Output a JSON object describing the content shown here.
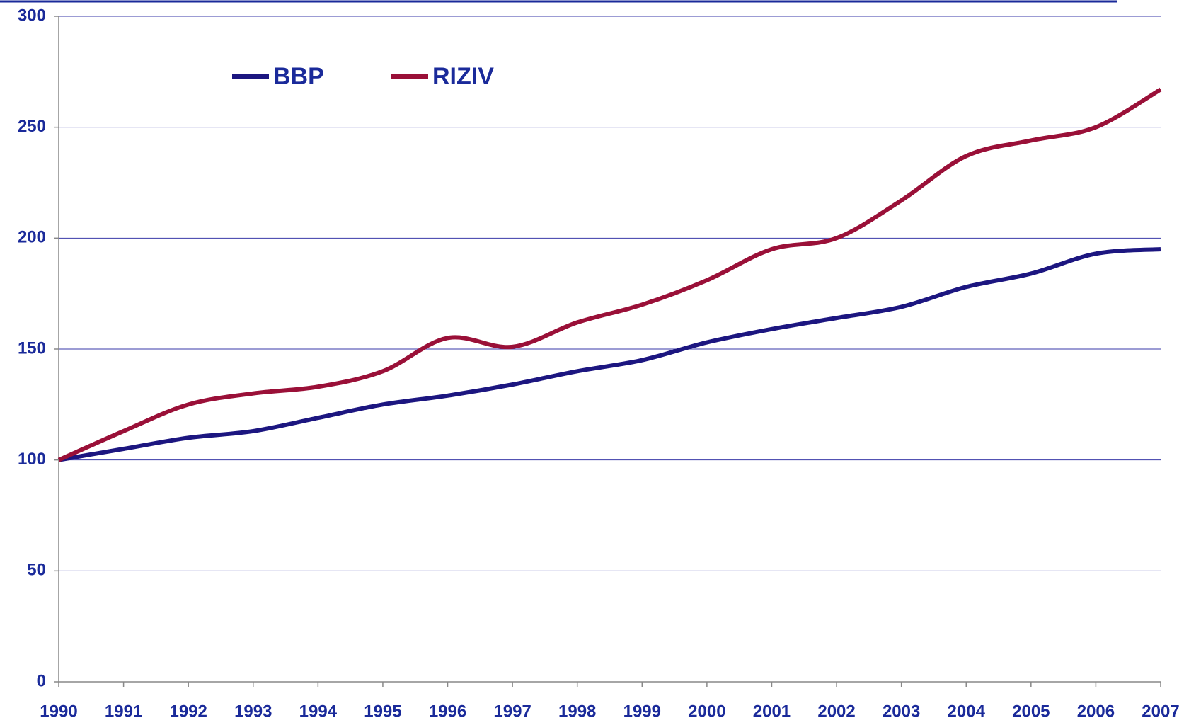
{
  "chart_data": {
    "type": "line",
    "categories": [
      "1990",
      "1991",
      "1992",
      "1993",
      "1994",
      "1995",
      "1996",
      "1997",
      "1998",
      "1999",
      "2000",
      "2001",
      "2002",
      "2003",
      "2004",
      "2005",
      "2006",
      "2007"
    ],
    "series": [
      {
        "name": "BBP",
        "color": "#1c1680",
        "values": [
          100,
          105,
          110,
          113,
          119,
          125,
          129,
          134,
          140,
          145,
          153,
          159,
          164,
          169,
          178,
          184,
          193,
          195
        ]
      },
      {
        "name": "RIZIV",
        "color": "#9a1038",
        "values": [
          100,
          113,
          125,
          130,
          133,
          140,
          155,
          151,
          162,
          170,
          181,
          195,
          200,
          217,
          237,
          244,
          250,
          267
        ]
      }
    ],
    "ylim": [
      0,
      300
    ],
    "yticks": [
      0,
      50,
      100,
      150,
      200,
      250,
      300
    ],
    "grid": true
  }
}
